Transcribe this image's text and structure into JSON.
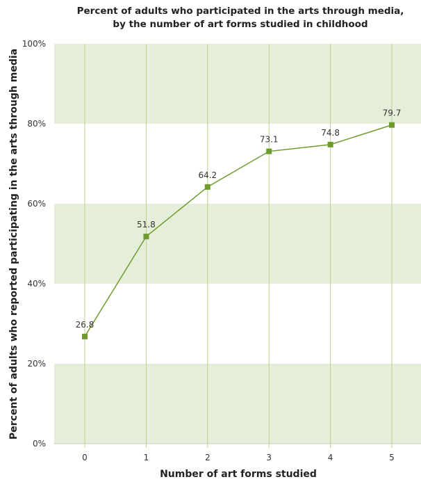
{
  "chart_data": {
    "type": "line",
    "title_line1": "Percent of adults who participated in the arts through media,",
    "title_line2": "by the number of art forms studied in childhood",
    "xlabel": "Number of art forms studied",
    "ylabel": "Percent of adults who reported participating in the arts through media",
    "categories": [
      "0",
      "1",
      "2",
      "3",
      "4",
      "5"
    ],
    "values": [
      26.8,
      51.8,
      64.2,
      73.1,
      74.8,
      79.7
    ],
    "data_labels": [
      "26.8",
      "51.8",
      "64.2",
      "73.1",
      "74.8",
      "79.7"
    ],
    "ylim": [
      0,
      100
    ],
    "yticks": [
      0,
      20,
      40,
      60,
      80,
      100
    ],
    "ytick_labels": [
      "0%",
      "20%",
      "40%",
      "60%",
      "80%",
      "100%"
    ],
    "grid": "vertical",
    "background_bands": "alternating green and white every 20%",
    "colors": {
      "band": "#e5eed8",
      "line": "#6d9c2d",
      "gridline": "#b9d08d",
      "axis": "#c7c7c7"
    }
  }
}
